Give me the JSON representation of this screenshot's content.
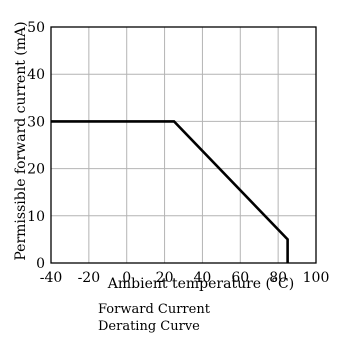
{
  "chart_data": {
    "type": "line",
    "xlabel": "Ambient temperature (°C)",
    "ylabel": "Permissible forward current (mA)",
    "caption_lines": [
      "Forward Current",
      "Derating  Curve"
    ],
    "xlim": [
      -40,
      100
    ],
    "ylim": [
      0,
      50
    ],
    "x_ticks": [
      -40,
      -20,
      0,
      20,
      40,
      60,
      80,
      100
    ],
    "x_tick_labels": [
      "-40",
      "-20",
      "0",
      "20",
      "40",
      "60",
      "80",
      "100"
    ],
    "y_ticks": [
      0,
      10,
      20,
      30,
      40,
      50
    ],
    "y_tick_labels": [
      "0",
      "10",
      "20",
      "30",
      "40",
      "50"
    ],
    "grid": true,
    "series": [
      {
        "values": [
          [
            -40,
            30
          ],
          [
            25,
            30
          ],
          [
            85,
            5
          ],
          [
            85,
            0
          ]
        ]
      }
    ],
    "colors": {
      "line": "#000000",
      "grid": "#b4b4b4",
      "frame": "#000000"
    }
  }
}
